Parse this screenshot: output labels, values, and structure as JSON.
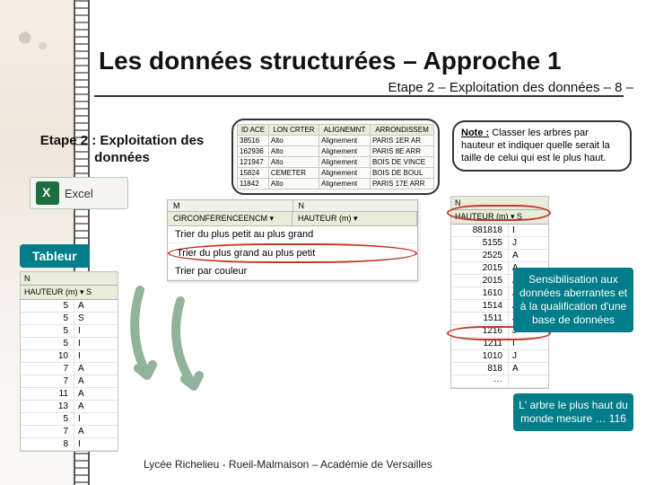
{
  "title": "Les données structurées – Approche 1",
  "subtitle": "Etape 2 – Exploitation des données – 8 –",
  "etape_label": "Etape 2 : Exploitation des données",
  "excel_label": "Excel",
  "tableur_label": "Tableur",
  "mini_column": {
    "col_n": "N",
    "header": "HAUTEUR (m) ▾  S",
    "rows": [
      [
        "5",
        "A"
      ],
      [
        "5",
        "S"
      ],
      [
        "5",
        "I"
      ],
      [
        "5",
        "I"
      ],
      [
        "10",
        "I"
      ],
      [
        "7",
        "A"
      ],
      [
        "7",
        "A"
      ],
      [
        "11",
        "A"
      ],
      [
        "13",
        "A"
      ],
      [
        "5",
        "I"
      ],
      [
        "7",
        "A"
      ],
      [
        "8",
        "I"
      ]
    ]
  },
  "data_table": {
    "columns": [
      "ID ACE",
      "LON CRTER",
      "ALIGNEMNT",
      "ARRONDISSEM"
    ],
    "rows": [
      [
        "38516",
        "Alto",
        "Alignement",
        "PARIS 1ER AR"
      ],
      [
        "162936",
        "Alto",
        "Alignement",
        "PARIS 8E ARR"
      ],
      [
        "121947",
        "Alto",
        "Alignement",
        "BOIS DE VINCE"
      ],
      [
        "15824",
        "CEMETER",
        "Alignement",
        "BOIS DE BOUL"
      ],
      [
        "11842",
        "Alto",
        "Alignement",
        "PARIS 17E ARR"
      ]
    ]
  },
  "sort_card": {
    "col_m": "M",
    "col_n": "N",
    "head_left": "CIRCONFERENCEENCM ▾",
    "head_right": "HAUTEUR (m) ▾",
    "opt1": "Trier du plus petit au plus grand",
    "opt2": "Trier du plus grand au plus petit",
    "opt3": "Trier par couleur"
  },
  "note": {
    "label": "Note :",
    "text": " Classer les arbres par hauteur et indiquer quelle serait la taille de celui qui est le plus haut."
  },
  "right_column": {
    "col_n": "N",
    "header": "HAUTEUR (m) ▾  S",
    "rows": [
      [
        "881818",
        "I"
      ],
      [
        "5155",
        "J"
      ],
      [
        "2525",
        "A"
      ],
      [
        "2015",
        "A"
      ],
      [
        "2015",
        "A"
      ],
      [
        "1610",
        "A"
      ],
      [
        "1514",
        "A"
      ],
      [
        "1511",
        "J"
      ],
      [
        "1216",
        "J"
      ],
      [
        "1211",
        "I"
      ],
      [
        "1010",
        "J"
      ],
      [
        "818",
        "A"
      ],
      [
        "···",
        ""
      ]
    ]
  },
  "sens_text": "Sensibilisation aux données aberrantes et à la qualification d'une base de données",
  "fact_text": "L' arbre le plus haut du monde mesure … 116",
  "footer": "Lycée Richelieu - Rueil-Malmaison – Académie de Versailles",
  "colors": {
    "teal": "#007d8a",
    "ring": "#c0392b",
    "arrow": "#91b39a"
  }
}
